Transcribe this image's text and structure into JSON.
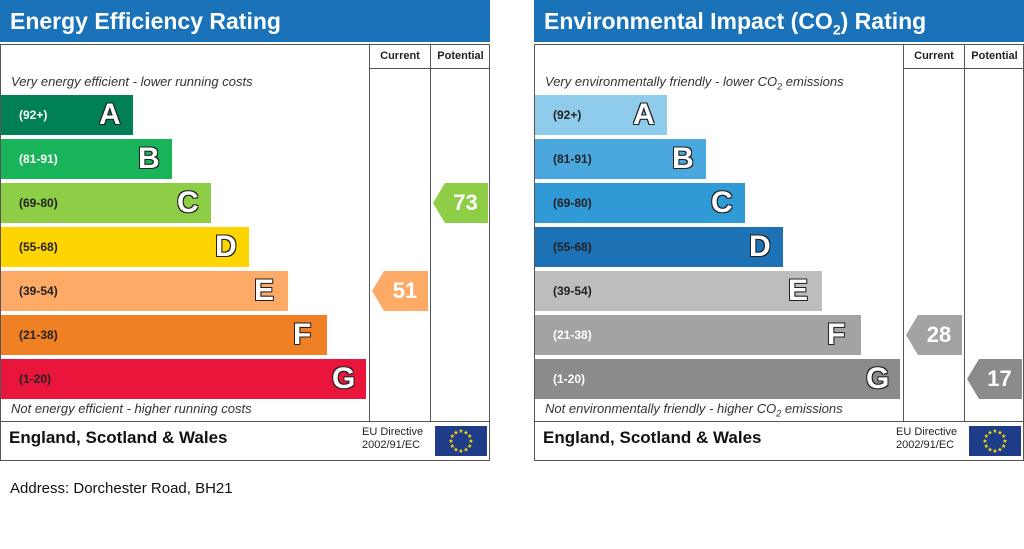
{
  "chart_data": [
    {
      "type": "bar",
      "title": "Energy Efficiency Rating",
      "columns": [
        "Current",
        "Potential"
      ],
      "top_note": "Very energy efficient - lower running costs",
      "bottom_note": "Not energy efficient - higher running costs",
      "bands": [
        {
          "range": "(92+)",
          "letter": "A",
          "color": "#008054",
          "text_color": "#ffffff"
        },
        {
          "range": "(81-91)",
          "letter": "B",
          "color": "#19b459",
          "text_color": "#ffffff"
        },
        {
          "range": "(69-80)",
          "letter": "C",
          "color": "#8dce46",
          "text_color": "#222222"
        },
        {
          "range": "(55-68)",
          "letter": "D",
          "color": "#ffd500",
          "text_color": "#222222"
        },
        {
          "range": "(39-54)",
          "letter": "E",
          "color": "#fcaa65",
          "text_color": "#222222"
        },
        {
          "range": "(21-38)",
          "letter": "F",
          "color": "#ef8023",
          "text_color": "#222222"
        },
        {
          "range": "(1-20)",
          "letter": "G",
          "color": "#e9153b",
          "text_color": "#222222"
        }
      ],
      "current": {
        "value": 51,
        "band": "E",
        "color": "#fcaa65"
      },
      "potential": {
        "value": 73,
        "band": "C",
        "color": "#8dce46"
      },
      "footer_region": "England, Scotland & Wales",
      "eu_directive": [
        "EU Directive",
        "2002/91/EC"
      ]
    },
    {
      "type": "bar",
      "title": "Environmental Impact (CO2) Rating",
      "columns": [
        "Current",
        "Potential"
      ],
      "top_note": "Very environmentally friendly - lower CO2 emissions",
      "bottom_note": "Not environmentally friendly - higher CO2 emissions",
      "bands": [
        {
          "range": "(92+)",
          "letter": "A",
          "color": "#8fcbeb",
          "text_color": "#222222"
        },
        {
          "range": "(81-91)",
          "letter": "B",
          "color": "#4ba8df",
          "text_color": "#222222"
        },
        {
          "range": "(69-80)",
          "letter": "C",
          "color": "#2f9ad6",
          "text_color": "#222222"
        },
        {
          "range": "(55-68)",
          "letter": "D",
          "color": "#1d72b6",
          "text_color": "#222222"
        },
        {
          "range": "(39-54)",
          "letter": "E",
          "color": "#bdbdbd",
          "text_color": "#222222"
        },
        {
          "range": "(21-38)",
          "letter": "F",
          "color": "#a3a3a3",
          "text_color": "#ffffff"
        },
        {
          "range": "(1-20)",
          "letter": "G",
          "color": "#8b8b8b",
          "text_color": "#ffffff"
        }
      ],
      "current": {
        "value": 28,
        "band": "F",
        "color": "#a3a3a3"
      },
      "potential": {
        "value": 17,
        "band": "G",
        "color": "#8b8b8b"
      },
      "footer_region": "England, Scotland & Wales",
      "eu_directive": [
        "EU Directive",
        "2002/91/EC"
      ]
    }
  ],
  "address": "Address: Dorchester Road, BH21"
}
